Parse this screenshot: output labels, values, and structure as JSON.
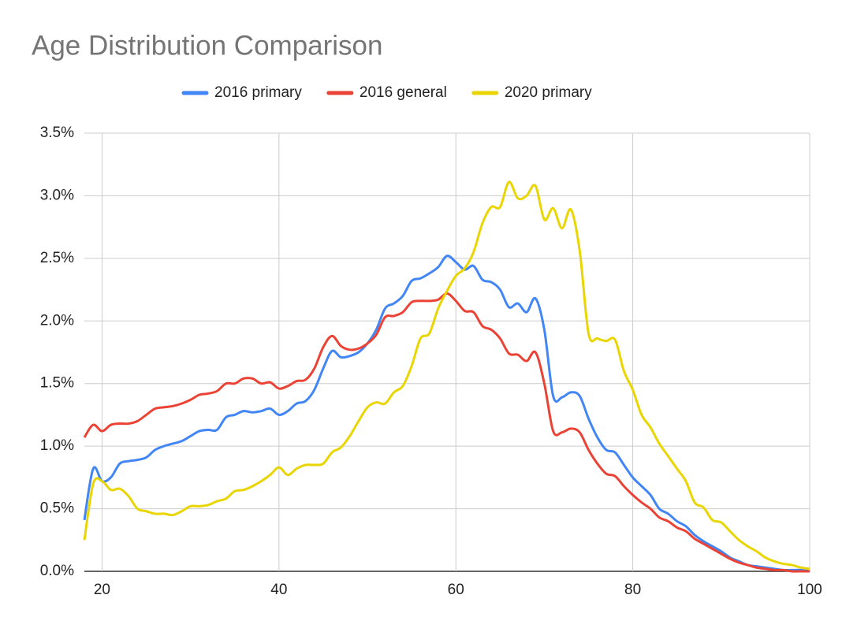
{
  "chart_data": {
    "type": "line",
    "title": "Age Distribution Comparison",
    "x": [
      18,
      19,
      20,
      21,
      22,
      23,
      24,
      25,
      26,
      27,
      28,
      29,
      30,
      31,
      32,
      33,
      34,
      35,
      36,
      37,
      38,
      39,
      40,
      41,
      42,
      43,
      44,
      45,
      46,
      47,
      48,
      49,
      50,
      51,
      52,
      53,
      54,
      55,
      56,
      57,
      58,
      59,
      60,
      61,
      62,
      63,
      64,
      65,
      66,
      67,
      68,
      69,
      70,
      71,
      72,
      73,
      74,
      75,
      76,
      77,
      78,
      79,
      80,
      81,
      82,
      83,
      84,
      85,
      86,
      87,
      88,
      89,
      90,
      91,
      92,
      93,
      94,
      95,
      96,
      97,
      98,
      99,
      100
    ],
    "series": [
      {
        "name": "2016 primary",
        "color": "#4285f4",
        "values": [
          0.41,
          0.82,
          0.72,
          0.75,
          0.86,
          0.88,
          0.89,
          0.91,
          0.97,
          1.0,
          1.02,
          1.04,
          1.08,
          1.12,
          1.13,
          1.13,
          1.23,
          1.25,
          1.28,
          1.27,
          1.28,
          1.3,
          1.25,
          1.28,
          1.34,
          1.36,
          1.45,
          1.62,
          1.76,
          1.71,
          1.72,
          1.75,
          1.82,
          1.93,
          2.1,
          2.14,
          2.2,
          2.32,
          2.34,
          2.38,
          2.43,
          2.52,
          2.47,
          2.41,
          2.44,
          2.33,
          2.31,
          2.25,
          2.11,
          2.14,
          2.07,
          2.18,
          1.93,
          1.4,
          1.39,
          1.43,
          1.4,
          1.22,
          1.07,
          0.97,
          0.95,
          0.85,
          0.75,
          0.68,
          0.61,
          0.5,
          0.46,
          0.4,
          0.36,
          0.29,
          0.24,
          0.2,
          0.16,
          0.11,
          0.08,
          0.05,
          0.04,
          0.03,
          0.02,
          0.01,
          0.01,
          0.01,
          0.0
        ]
      },
      {
        "name": "2016 general",
        "color": "#ea4335",
        "values": [
          1.07,
          1.17,
          1.12,
          1.17,
          1.18,
          1.18,
          1.2,
          1.25,
          1.3,
          1.31,
          1.32,
          1.34,
          1.37,
          1.41,
          1.42,
          1.44,
          1.5,
          1.5,
          1.54,
          1.54,
          1.5,
          1.51,
          1.46,
          1.48,
          1.52,
          1.53,
          1.62,
          1.79,
          1.88,
          1.8,
          1.77,
          1.78,
          1.82,
          1.89,
          2.03,
          2.04,
          2.07,
          2.15,
          2.16,
          2.16,
          2.17,
          2.22,
          2.16,
          2.08,
          2.07,
          1.96,
          1.93,
          1.86,
          1.74,
          1.73,
          1.68,
          1.75,
          1.5,
          1.12,
          1.11,
          1.14,
          1.11,
          0.97,
          0.86,
          0.78,
          0.76,
          0.68,
          0.61,
          0.55,
          0.5,
          0.43,
          0.4,
          0.35,
          0.32,
          0.26,
          0.22,
          0.18,
          0.14,
          0.1,
          0.07,
          0.05,
          0.03,
          0.02,
          0.01,
          0.01,
          0.0,
          0.0,
          0.0
        ]
      },
      {
        "name": "2020 primary",
        "color": "#e9d502",
        "values": [
          0.25,
          0.7,
          0.72,
          0.65,
          0.66,
          0.6,
          0.5,
          0.48,
          0.46,
          0.46,
          0.45,
          0.48,
          0.52,
          0.52,
          0.53,
          0.56,
          0.58,
          0.64,
          0.65,
          0.68,
          0.72,
          0.77,
          0.83,
          0.77,
          0.82,
          0.85,
          0.85,
          0.86,
          0.95,
          0.99,
          1.08,
          1.2,
          1.31,
          1.35,
          1.34,
          1.43,
          1.48,
          1.64,
          1.86,
          1.9,
          2.1,
          2.24,
          2.36,
          2.42,
          2.55,
          2.78,
          2.91,
          2.91,
          3.11,
          2.98,
          3.0,
          3.08,
          2.81,
          2.9,
          2.74,
          2.89,
          2.56,
          1.9,
          1.86,
          1.84,
          1.85,
          1.6,
          1.45,
          1.25,
          1.15,
          1.02,
          0.92,
          0.82,
          0.72,
          0.55,
          0.51,
          0.41,
          0.39,
          0.32,
          0.25,
          0.2,
          0.16,
          0.11,
          0.08,
          0.06,
          0.05,
          0.03,
          0.02
        ]
      }
    ],
    "xlim": [
      18,
      100
    ],
    "xticks": [
      20,
      40,
      60,
      80,
      100
    ],
    "ylim": [
      0,
      3.5
    ],
    "yticks": [
      {
        "value": 0,
        "label": "0.0%"
      },
      {
        "value": 0.5,
        "label": "0.5%"
      },
      {
        "value": 1,
        "label": "1.0%"
      },
      {
        "value": 1.5,
        "label": "1.5%"
      },
      {
        "value": 2,
        "label": "2.0%"
      },
      {
        "value": 2.5,
        "label": "2.5%"
      },
      {
        "value": 3,
        "label": "3.0%"
      },
      {
        "value": 3.5,
        "label": "3.5%"
      }
    ],
    "grid": true,
    "legend": "top"
  }
}
